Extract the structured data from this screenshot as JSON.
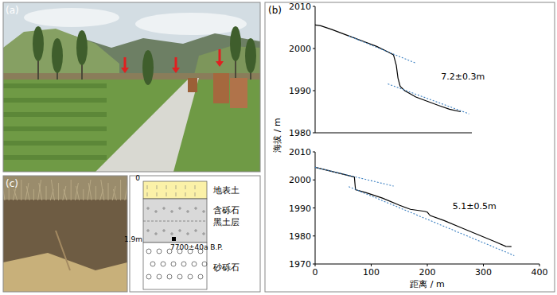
{
  "chart_data": [
    {
      "type": "line",
      "title": "(b)",
      "ylabel": "海拔 / m",
      "xlim": [
        0,
        280
      ],
      "ylim": [
        1980,
        2010
      ],
      "yticks": [
        1980,
        1990,
        2000,
        2010
      ],
      "tick_labels": "y",
      "series": [
        {
          "color": "#000000",
          "line_style": "solid",
          "x": [
            0,
            10,
            30,
            60,
            90,
            110,
            130,
            140,
            145,
            148,
            152,
            160,
            180,
            200,
            220,
            240,
            260
          ],
          "values": [
            2005.6,
            2005.4,
            2004.5,
            2003,
            2001.5,
            2000.5,
            1999.2,
            1998.5,
            1996,
            1993,
            1991,
            1990,
            1988.5,
            1987.5,
            1986.5,
            1985.6,
            1985
          ]
        },
        {
          "color": "#3a7fc1",
          "line_style": "dashed",
          "x": [
            60,
            180
          ],
          "values": [
            2003,
            1996.5
          ]
        },
        {
          "color": "#3a7fc1",
          "line_style": "dashed",
          "x": [
            130,
            275
          ],
          "values": [
            1991.6,
            1984.5
          ]
        }
      ],
      "annotations": [
        {
          "text": "7.2±0.3m",
          "x": 225,
          "y": 1992.7
        }
      ]
    },
    {
      "type": "line",
      "xlabel": "距离 / m",
      "xlim": [
        0,
        400
      ],
      "xticks": [
        0,
        100,
        200,
        300,
        400
      ],
      "ylim": [
        1970,
        2010
      ],
      "yticks": [
        1970,
        1980,
        1990,
        2000,
        2010
      ],
      "series": [
        {
          "color": "#000000",
          "line_style": "solid",
          "x": [
            0,
            20,
            50,
            70,
            72,
            90,
            120,
            150,
            170,
            195,
            200,
            205,
            230,
            260,
            290,
            320,
            340,
            350
          ],
          "values": [
            2004.5,
            2003.5,
            2002,
            2001,
            1996.5,
            1995.5,
            1993.5,
            1991,
            1989.5,
            1988.8,
            1988.5,
            1987.3,
            1985.5,
            1983,
            1980.5,
            1978,
            1976.3,
            1976.2
          ]
        },
        {
          "color": "#3a7fc1",
          "line_style": "dashed",
          "x": [
            0,
            140
          ],
          "values": [
            2004.5,
            1997.8
          ]
        },
        {
          "color": "#3a7fc1",
          "line_style": "dashed",
          "x": [
            60,
            355
          ],
          "values": [
            1997.6,
            1973
          ]
        }
      ],
      "annotations": [
        {
          "text": "5.1±0.5m",
          "x": 245,
          "y": 1989.5
        }
      ]
    }
  ],
  "panels": {
    "a": {
      "label": "(a)"
    },
    "c": {
      "label": "(c)",
      "column": {
        "top_label": "0",
        "layers": [
          {
            "lines": [
              "地表土"
            ]
          },
          {
            "lines": [
              "含砾石",
              "黑土层"
            ]
          },
          {
            "lines": [
              "砂砾石"
            ]
          }
        ],
        "depth_label": "1.9m",
        "date_label": "7700±40a B.P."
      }
    }
  }
}
